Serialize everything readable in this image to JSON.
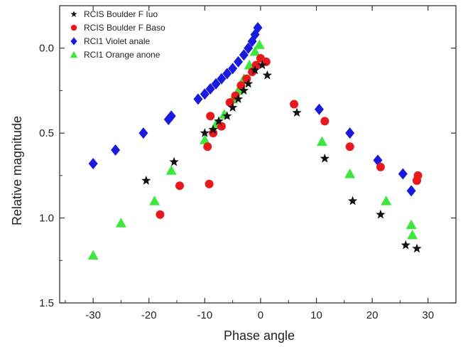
{
  "chart_data": {
    "type": "scatter",
    "xlabel": "Phase angle",
    "ylabel": "Relative magnitude",
    "xlim": [
      -36,
      35
    ],
    "ylim": [
      1.5,
      -0.25
    ],
    "y_reversed": true,
    "x_ticks": [
      -30,
      -20,
      -10,
      0,
      10,
      20,
      30
    ],
    "x_tick_labels": [
      "-30",
      "-20",
      "-10",
      "0",
      "10",
      "20",
      "30"
    ],
    "y_ticks": [
      0.0,
      0.5,
      1.0,
      1.5
    ],
    "y_tick_labels": [
      "0.0",
      "0.5",
      "1.0",
      "1.5"
    ],
    "grid": false,
    "legend_position": "top-left",
    "series": [
      {
        "name": "RCIS Boulder F Iuo",
        "marker": "star",
        "color": "#111111",
        "points": [
          [
            1.2,
            0.16
          ],
          [
            0.3,
            0.1
          ],
          [
            -1.0,
            0.13
          ],
          [
            -2.2,
            0.21
          ],
          [
            -3.0,
            0.25
          ],
          [
            -4.0,
            0.3
          ],
          [
            -5.0,
            0.35
          ],
          [
            -6.0,
            0.4
          ],
          [
            -7.5,
            0.43
          ],
          [
            -8.5,
            0.48
          ],
          [
            -10.0,
            0.5
          ],
          [
            -15.5,
            0.67
          ],
          [
            -20.5,
            0.78
          ],
          [
            6.5,
            0.38
          ],
          [
            11.5,
            0.65
          ],
          [
            16.5,
            0.9
          ],
          [
            21.5,
            0.98
          ],
          [
            26.0,
            1.16
          ],
          [
            28.0,
            1.18
          ]
        ]
      },
      {
        "name": "RCIS Boulder F Baso",
        "marker": "circle",
        "color": "#e8191c",
        "points": [
          [
            1.0,
            0.08
          ],
          [
            0.0,
            0.06
          ],
          [
            -0.8,
            0.1
          ],
          [
            -1.5,
            0.14
          ],
          [
            -2.5,
            0.18
          ],
          [
            -3.5,
            0.22
          ],
          [
            -4.5,
            0.28
          ],
          [
            -5.5,
            0.32
          ],
          [
            -7.0,
            0.46
          ],
          [
            -8.5,
            0.5
          ],
          [
            -9.5,
            0.58
          ],
          [
            -9.0,
            0.4
          ],
          [
            -9.2,
            0.8
          ],
          [
            -14.5,
            0.81
          ],
          [
            -18.0,
            0.98
          ],
          [
            6.0,
            0.33
          ],
          [
            11.5,
            0.43
          ],
          [
            16.0,
            0.58
          ],
          [
            21.5,
            0.7
          ],
          [
            28.0,
            0.78
          ],
          [
            28.2,
            0.75
          ]
        ]
      },
      {
        "name": "RCI1 Violet anale",
        "marker": "diamond",
        "color": "#1a1adf",
        "points": [
          [
            -0.5,
            -0.12
          ],
          [
            -1.0,
            -0.08
          ],
          [
            -1.5,
            -0.04
          ],
          [
            -2.2,
            0.0
          ],
          [
            -3.0,
            0.04
          ],
          [
            -4.0,
            0.08
          ],
          [
            -5.0,
            0.12
          ],
          [
            -6.0,
            0.15
          ],
          [
            -7.0,
            0.18
          ],
          [
            -8.0,
            0.21
          ],
          [
            -9.0,
            0.24
          ],
          [
            -10.0,
            0.27
          ],
          [
            -11.2,
            0.3
          ],
          [
            -16.0,
            0.4
          ],
          [
            -16.5,
            0.42
          ],
          [
            -21.0,
            0.5
          ],
          [
            -26.0,
            0.6
          ],
          [
            -30.0,
            0.68
          ],
          [
            10.5,
            0.36
          ],
          [
            16.0,
            0.5
          ],
          [
            21.0,
            0.66
          ],
          [
            25.5,
            0.74
          ],
          [
            27.0,
            0.84
          ]
        ]
      },
      {
        "name": "RCI1 Orange anone",
        "marker": "triangle",
        "color": "#3ee63e",
        "points": [
          [
            -0.2,
            -0.02
          ],
          [
            -1.0,
            0.02
          ],
          [
            -2.0,
            0.1
          ],
          [
            -3.0,
            0.18
          ],
          [
            -4.0,
            0.25
          ],
          [
            -5.0,
            0.3
          ],
          [
            -6.5,
            0.39
          ],
          [
            -8.0,
            0.45
          ],
          [
            -10.0,
            0.54
          ],
          [
            -16.0,
            0.72
          ],
          [
            -19.0,
            0.9
          ],
          [
            -25.0,
            1.03
          ],
          [
            -30.0,
            1.22
          ],
          [
            11.0,
            0.55
          ],
          [
            16.0,
            0.74
          ],
          [
            22.5,
            0.9
          ],
          [
            27.0,
            1.04
          ],
          [
            27.2,
            1.1
          ]
        ]
      }
    ]
  }
}
